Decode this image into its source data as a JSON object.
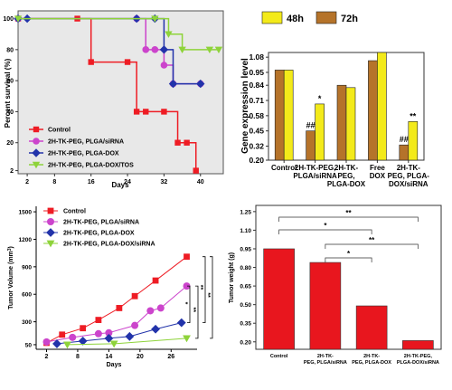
{
  "chart_data": [
    {
      "id": "survival",
      "type": "line",
      "xlabel": "Days",
      "ylabel": "Percent survival (%)",
      "xticks": [
        2,
        8,
        16,
        24,
        32,
        40
      ],
      "yticks": [
        2,
        20,
        40,
        60,
        80,
        100
      ],
      "xlim": [
        0,
        45
      ],
      "ylim": [
        0,
        105
      ],
      "legend_position": "bottom-left",
      "series": [
        {
          "name": "Control",
          "color": "#ee1c24",
          "marker": "square",
          "step": true,
          "x": [
            0,
            13,
            16,
            24,
            26,
            28,
            32,
            35,
            37,
            39
          ],
          "y": [
            100,
            100,
            72,
            72,
            40,
            40,
            40,
            20,
            20,
            2
          ]
        },
        {
          "name": "2H-TK-PEG, PLGA/siRNA",
          "color": "#cc44cc",
          "marker": "circle",
          "step": true,
          "x": [
            0,
            26,
            28,
            30,
            32,
            34,
            40
          ],
          "y": [
            100,
            100,
            80,
            80,
            70,
            58,
            58
          ]
        },
        {
          "name": "2H-TK-PEG, PLGA-DOX",
          "color": "#2233aa",
          "marker": "diamond",
          "step": true,
          "x": [
            0,
            2,
            26,
            30,
            32,
            34,
            40
          ],
          "y": [
            100,
            100,
            100,
            100,
            80,
            58,
            58
          ]
        },
        {
          "name": "2H-TK-PEG, PLGA-DOX/TOS",
          "color": "#8ed33a",
          "marker": "triangle-down",
          "step": true,
          "x": [
            0,
            30,
            33,
            36,
            42,
            44
          ],
          "y": [
            100,
            100,
            90,
            80,
            80,
            80
          ]
        }
      ]
    },
    {
      "id": "gene_expression",
      "type": "bar",
      "ylabel": "Gene expression level",
      "yticks": [
        0.2,
        0.32,
        0.45,
        0.58,
        0.71,
        0.84,
        0.95,
        1.08
      ],
      "ylim": [
        0.2,
        1.12
      ],
      "legend_position": "top",
      "categories": [
        "Control",
        "2H-TK-PEG, PLGA/siRNA",
        "2H-TK- PEG, PLGA-DOX",
        "Free DOX",
        "2H-TK- PEG, PLGA- DOX/siRNA"
      ],
      "series": [
        {
          "name": "48h",
          "color": "#f3ea1a",
          "values": [
            0.97,
            0.68,
            0.82,
            1.12,
            0.53
          ]
        },
        {
          "name": "72h",
          "color": "#b5732a",
          "values": [
            0.97,
            0.45,
            0.84,
            1.05,
            0.33
          ]
        }
      ],
      "annotations": [
        {
          "category": 1,
          "series": "72h",
          "text": "##"
        },
        {
          "category": 1,
          "series": "48h",
          "text": "*"
        },
        {
          "category": 4,
          "series": "72h",
          "text": "##"
        },
        {
          "category": 4,
          "series": "48h",
          "text": "**"
        }
      ]
    },
    {
      "id": "tumor_volume",
      "type": "line",
      "xlabel": "Days",
      "ylabel": "Tumor Volume (mm3)",
      "ylabel_main": "Tumor Volume (mm",
      "ylabel_sup": "3",
      "ylabel_tail": ")",
      "xticks": [
        2,
        8,
        14,
        20,
        26
      ],
      "yticks": [
        50,
        300,
        600,
        900,
        1200,
        1500
      ],
      "xlim": [
        0,
        31
      ],
      "ylim": [
        0,
        1560
      ],
      "legend_position": "top-left",
      "series": [
        {
          "name": "Control",
          "color": "#ee1c24",
          "marker": "square",
          "x": [
            2,
            5,
            9,
            12,
            16,
            19,
            23,
            29
          ],
          "y": [
            70,
            160,
            230,
            320,
            450,
            580,
            750,
            1010
          ]
        },
        {
          "name": "2H-TK-PEG, PLGA/siRNA",
          "color": "#cc44cc",
          "marker": "circle",
          "x": [
            2,
            7,
            12,
            14,
            19,
            22,
            24,
            29
          ],
          "y": [
            80,
            130,
            170,
            180,
            260,
            420,
            450,
            690
          ]
        },
        {
          "name": "2H-TK-PEG, PLGA-DOX",
          "color": "#2233aa",
          "marker": "diamond",
          "x": [
            4,
            9,
            14,
            18,
            23,
            28
          ],
          "y": [
            60,
            90,
            120,
            140,
            220,
            290
          ]
        },
        {
          "name": "2H-TK-PEG, PLGA-DOX/siRNA",
          "color": "#8ed33a",
          "marker": "triangle-down",
          "x": [
            6,
            15,
            29
          ],
          "y": [
            50,
            60,
            120
          ]
        }
      ],
      "significance": [
        "*",
        "**",
        "**",
        "**"
      ]
    },
    {
      "id": "tumor_weight",
      "type": "bar",
      "ylabel": "Tumor weight (g)",
      "yticks": [
        0.2,
        0.35,
        0.5,
        0.65,
        0.8,
        0.95,
        1.1,
        1.25
      ],
      "ylim": [
        0.14,
        1.3
      ],
      "categories": [
        "Control",
        "2H-TK- PEG, PLGA/siRNA",
        "2H-TK- PEG, PLGA-DOX",
        "2H-TK-PEG, PLGA-DOX/siRNA"
      ],
      "colors": {
        "fill": "#e8161e"
      },
      "values": [
        0.95,
        0.84,
        0.49,
        0.21
      ],
      "brackets": [
        {
          "from": 0,
          "to": 3,
          "text": "**"
        },
        {
          "from": 0,
          "to": 2,
          "text": "*"
        },
        {
          "from": 1,
          "to": 3,
          "text": "**"
        },
        {
          "from": 1,
          "to": 2,
          "text": "*"
        }
      ]
    }
  ]
}
